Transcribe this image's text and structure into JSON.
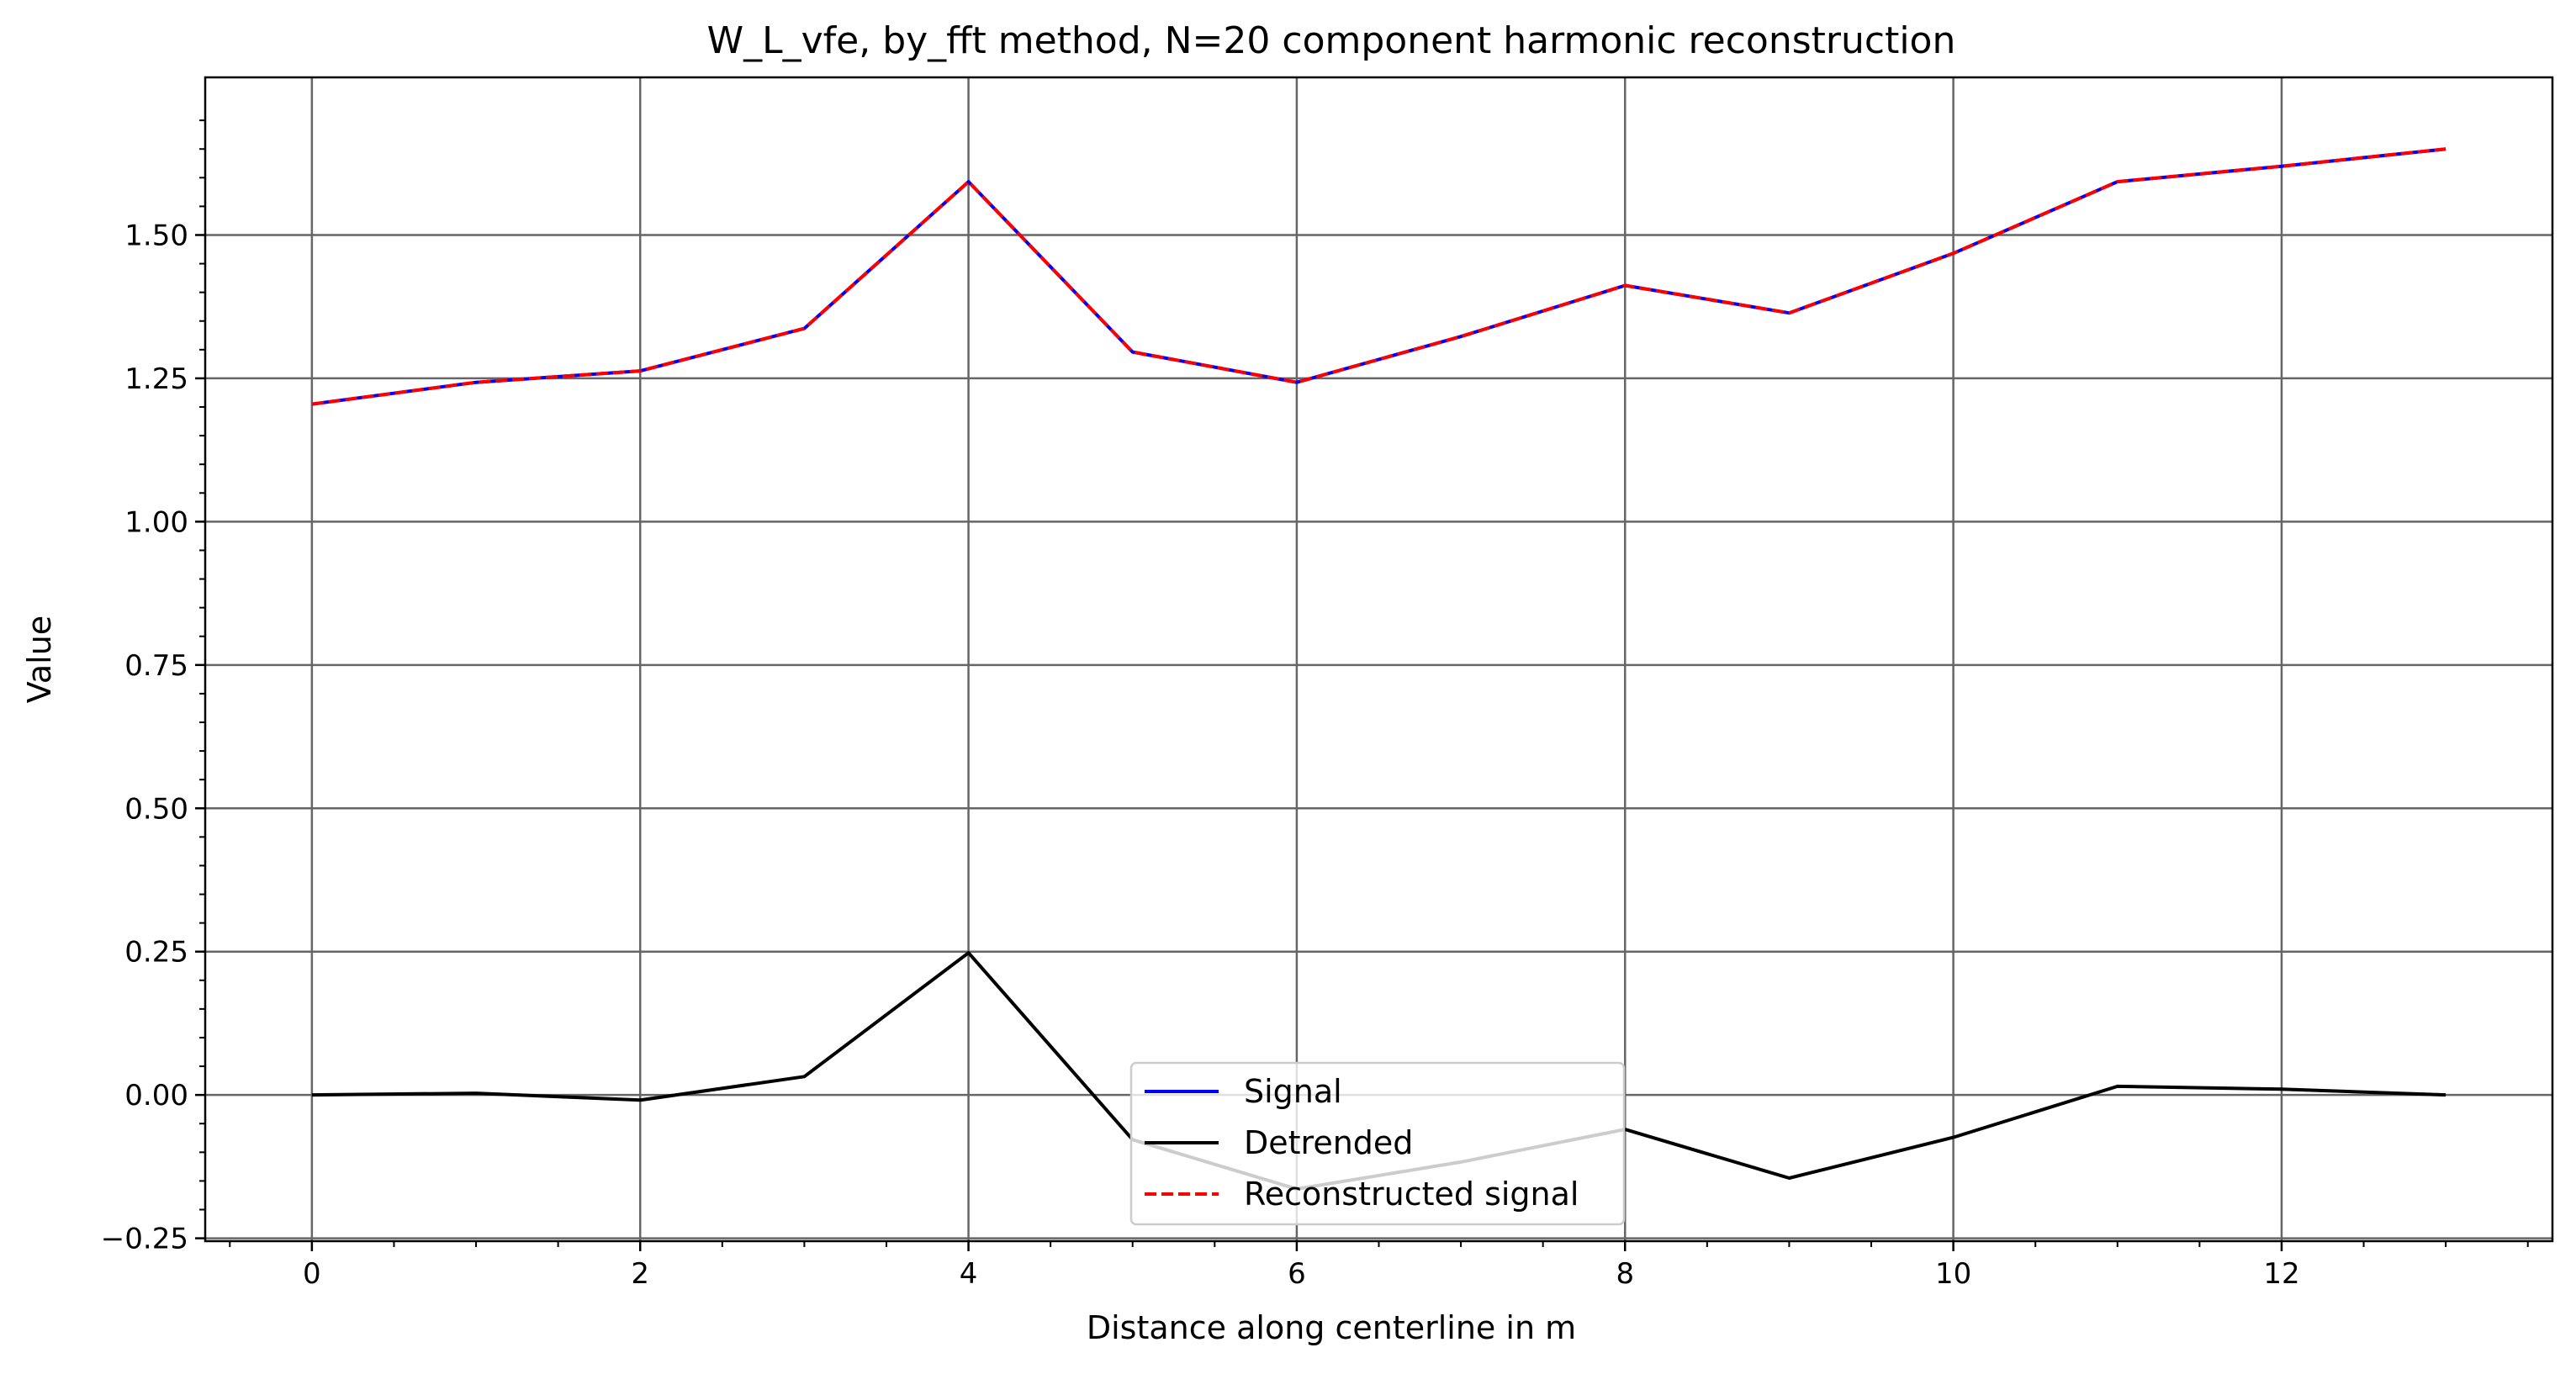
{
  "chart_data": {
    "type": "line",
    "title": "W_L_vfe, by_fft method, N=20 component harmonic reconstruction",
    "xlabel": "Distance along centerline in m",
    "ylabel": "Value",
    "xlim": [
      -0.65,
      13.65
    ],
    "ylim": [
      -0.255,
      1.775
    ],
    "xticks": [
      0,
      2,
      4,
      6,
      8,
      10,
      12
    ],
    "xtick_labels": [
      "0",
      "2",
      "4",
      "6",
      "8",
      "10",
      "12"
    ],
    "yticks": [
      -0.25,
      0.0,
      0.25,
      0.5,
      0.75,
      1.0,
      1.25,
      1.5
    ],
    "ytick_labels": [
      "−0.25",
      "0.00",
      "0.25",
      "0.50",
      "0.75",
      "1.00",
      "1.25",
      "1.50"
    ],
    "grid": true,
    "minor_ticks": true,
    "legend_position": "bottom-center",
    "x": [
      0,
      1,
      2,
      3,
      4,
      5,
      6,
      7,
      8,
      9,
      10,
      11,
      12,
      13
    ],
    "series": [
      {
        "name": "Signal",
        "color": "#0000ff",
        "style": "solid",
        "values": [
          1.205,
          1.243,
          1.263,
          1.337,
          1.593,
          1.296,
          1.243,
          1.323,
          1.412,
          1.364,
          1.468,
          1.593,
          1.62,
          1.65
        ]
      },
      {
        "name": "Detrended",
        "color": "#000000",
        "style": "solid",
        "values": [
          0.0,
          0.003,
          -0.009,
          0.032,
          0.248,
          -0.078,
          -0.164,
          -0.117,
          -0.06,
          -0.145,
          -0.074,
          0.015,
          0.01,
          0.0
        ]
      },
      {
        "name": "Reconstructed signal",
        "color": "#ff0000",
        "style": "dashed",
        "values": [
          1.205,
          1.243,
          1.263,
          1.337,
          1.593,
          1.296,
          1.243,
          1.323,
          1.412,
          1.364,
          1.468,
          1.593,
          1.62,
          1.65
        ]
      }
    ]
  }
}
